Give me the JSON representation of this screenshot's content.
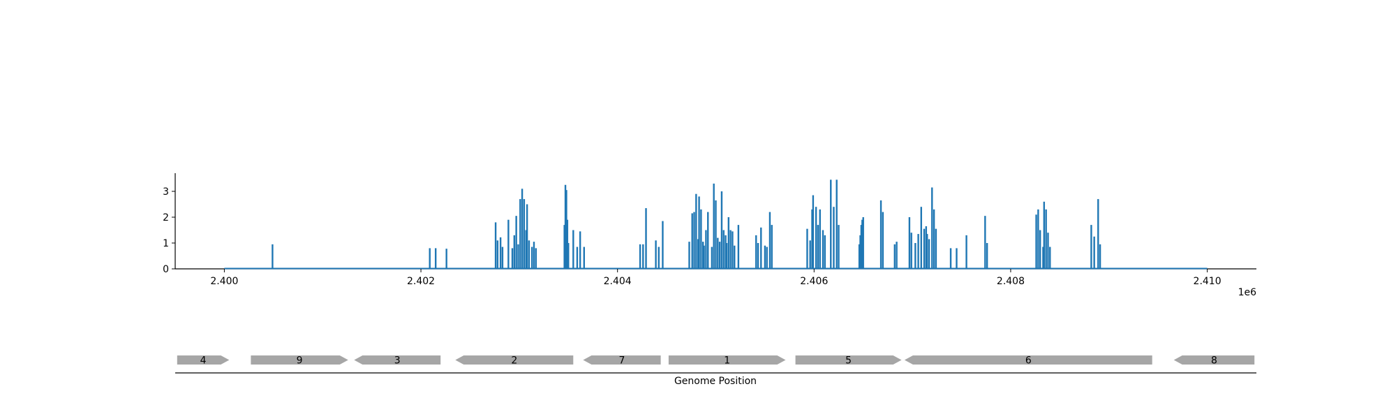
{
  "chart_data": [
    {
      "type": "bar",
      "title": "",
      "xlabel": "",
      "ylabel": "",
      "x_offset_label": "1e6",
      "xlim": [
        2399500,
        2410500
      ],
      "ylim": [
        0,
        3.75
      ],
      "xticks": [
        2400000,
        2402000,
        2404000,
        2406000,
        2408000,
        2410000
      ],
      "xtick_labels": [
        "2.400",
        "2.402",
        "2.404",
        "2.406",
        "2.408",
        "2.410"
      ],
      "yticks": [
        0,
        1,
        2,
        3
      ],
      "ytick_labels": [
        "0",
        "1",
        "2",
        "3"
      ],
      "baseline_range": [
        2400000,
        2410000
      ],
      "grid": false,
      "color": "#1f77b4",
      "x": [
        2400490,
        2402090,
        2402150,
        2402260,
        2402760,
        2402780,
        2402810,
        2402830,
        2402890,
        2402930,
        2402950,
        2402970,
        2402990,
        2403010,
        2403030,
        2403050,
        2403070,
        2403080,
        2403100,
        2403130,
        2403150,
        2403170,
        2403460,
        2403470,
        2403480,
        2403490,
        2403500,
        2403550,
        2403590,
        2403620,
        2403660,
        2404230,
        2404260,
        2404290,
        2404390,
        2404420,
        2404460,
        2404730,
        2404760,
        2404780,
        2404800,
        2404820,
        2404830,
        2404850,
        2404870,
        2404880,
        2404900,
        2404920,
        2404960,
        2404980,
        2405000,
        2405020,
        2405040,
        2405060,
        2405080,
        2405100,
        2405110,
        2405130,
        2405150,
        2405170,
        2405190,
        2405230,
        2405410,
        2405430,
        2405460,
        2405500,
        2405520,
        2405550,
        2405570,
        2405930,
        2405960,
        2405980,
        2405990,
        2406020,
        2406040,
        2406060,
        2406090,
        2406110,
        2406170,
        2406200,
        2406230,
        2406250,
        2406460,
        2406470,
        2406480,
        2406490,
        2406500,
        2406680,
        2406700,
        2406820,
        2406840,
        2406970,
        2406990,
        2407030,
        2407060,
        2407090,
        2407120,
        2407140,
        2407150,
        2407170,
        2407200,
        2407220,
        2407240,
        2407390,
        2407450,
        2407550,
        2407740,
        2407760,
        2408260,
        2408280,
        2408300,
        2408330,
        2408340,
        2408360,
        2408380,
        2408400,
        2408820,
        2408850,
        2408890,
        2408910
      ],
      "values": [
        0.95,
        0.8,
        0.8,
        0.78,
        1.8,
        1.1,
        1.22,
        0.85,
        1.9,
        0.8,
        1.3,
        2.05,
        0.95,
        2.7,
        3.1,
        2.7,
        1.5,
        2.5,
        1.1,
        0.85,
        1.05,
        0.8,
        1.7,
        3.25,
        3.05,
        1.9,
        1.0,
        1.5,
        0.85,
        1.45,
        0.85,
        0.95,
        0.95,
        2.35,
        1.1,
        0.85,
        1.85,
        1.05,
        2.15,
        2.2,
        2.9,
        1.15,
        2.8,
        2.3,
        1.05,
        0.9,
        1.5,
        2.2,
        0.85,
        3.3,
        2.65,
        1.2,
        1.05,
        3.0,
        1.5,
        1.3,
        1.0,
        2.0,
        1.5,
        1.45,
        0.9,
        1.7,
        1.3,
        1.0,
        1.6,
        0.9,
        0.85,
        2.2,
        1.7,
        1.55,
        1.1,
        2.3,
        2.85,
        2.4,
        1.7,
        2.3,
        1.5,
        1.3,
        3.45,
        2.4,
        3.45,
        1.7,
        0.95,
        1.3,
        1.7,
        1.9,
        2.0,
        2.65,
        2.2,
        0.95,
        1.05,
        2.0,
        1.4,
        1.0,
        1.35,
        2.4,
        1.55,
        1.65,
        1.35,
        1.15,
        3.15,
        2.3,
        1.55,
        0.8,
        0.8,
        1.3,
        2.05,
        1.0,
        2.1,
        2.3,
        1.5,
        0.85,
        2.6,
        2.3,
        1.4,
        0.85,
        1.7,
        1.25,
        2.7,
        0.95
      ]
    },
    {
      "type": "diagram",
      "xlabel": "Genome Position",
      "xlim": [
        2399500,
        2410500
      ],
      "color": "#a6a6a6",
      "genes": [
        {
          "label": "4",
          "start": 2399520,
          "end": 2400050,
          "strand": "+"
        },
        {
          "label": "9",
          "start": 2400270,
          "end": 2401260,
          "strand": "+"
        },
        {
          "label": "3",
          "start": 2401320,
          "end": 2402200,
          "strand": "-"
        },
        {
          "label": "2",
          "start": 2402350,
          "end": 2403550,
          "strand": "-"
        },
        {
          "label": "7",
          "start": 2403650,
          "end": 2404440,
          "strand": "-"
        },
        {
          "label": "1",
          "start": 2404520,
          "end": 2405710,
          "strand": "+"
        },
        {
          "label": "5",
          "start": 2405810,
          "end": 2406890,
          "strand": "+"
        },
        {
          "label": "6",
          "start": 2406920,
          "end": 2409440,
          "strand": "-"
        },
        {
          "label": "8",
          "start": 2409660,
          "end": 2410480,
          "strand": "-"
        }
      ]
    }
  ]
}
